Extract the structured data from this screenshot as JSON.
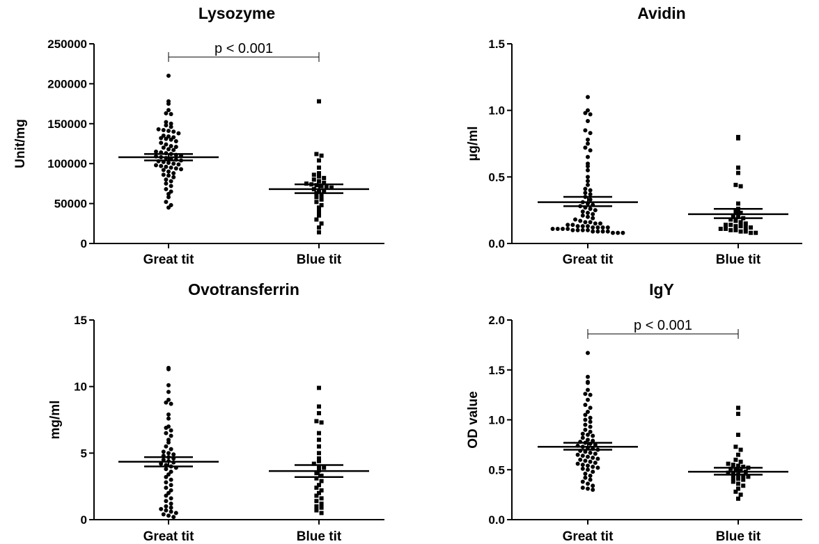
{
  "chart_data": [
    {
      "type": "scatter",
      "title": "Lysozyme",
      "ylabel": "Unit/mg",
      "ylim": [
        0,
        250000
      ],
      "yticks": [
        0,
        50000,
        100000,
        150000,
        200000,
        250000
      ],
      "ytick_labels": [
        "0",
        "50000",
        "100000",
        "150000",
        "200000",
        "250000"
      ],
      "categories": [
        "Great tit",
        "Blue tit"
      ],
      "significance": {
        "label": "p < 0.001",
        "between": [
          "Great tit",
          "Blue tit"
        ]
      },
      "series": [
        {
          "marker": "circle",
          "mean": 108000,
          "sem_low": 104000,
          "sem_high": 112000,
          "values": [
            210000,
            178000,
            175000,
            167000,
            163000,
            162000,
            152000,
            150000,
            148000,
            146000,
            143000,
            142000,
            141000,
            140000,
            138000,
            135000,
            134000,
            133000,
            132000,
            131000,
            130000,
            128000,
            126000,
            124000,
            122000,
            121000,
            120000,
            118000,
            117000,
            115000,
            114000,
            113000,
            112000,
            111000,
            110000,
            109000,
            108000,
            107000,
            106000,
            105000,
            104000,
            103000,
            102000,
            101000,
            100000,
            99000,
            98000,
            97000,
            96000,
            95000,
            94000,
            93000,
            92000,
            90000,
            88000,
            86000,
            85000,
            83000,
            80000,
            78000,
            75000,
            72000,
            68000,
            65000,
            62000,
            58000,
            52000,
            48000,
            45000
          ]
        },
        {
          "marker": "square",
          "mean": 68000,
          "sem_low": 63000,
          "sem_high": 74000,
          "values": [
            178000,
            112000,
            110000,
            104000,
            95000,
            88000,
            86000,
            84000,
            82000,
            80000,
            78000,
            76000,
            75000,
            74000,
            73000,
            72000,
            71000,
            70000,
            68000,
            66000,
            65000,
            63000,
            60000,
            58000,
            55000,
            52000,
            48000,
            45000,
            40000,
            35000,
            30000,
            25000,
            20000,
            14000
          ]
        }
      ]
    },
    {
      "type": "scatter",
      "title": "Avidin",
      "ylabel": "µg/ml",
      "ylim": [
        0,
        1.5
      ],
      "yticks": [
        0,
        0.5,
        1.0,
        1.5
      ],
      "ytick_labels": [
        "0.0",
        "0.5",
        "1.0",
        "1.5"
      ],
      "categories": [
        "Great tit",
        "Blue tit"
      ],
      "series": [
        {
          "marker": "circle",
          "mean": 0.31,
          "sem_low": 0.28,
          "sem_high": 0.35,
          "values": [
            1.1,
            1.0,
            0.98,
            0.97,
            0.92,
            0.85,
            0.83,
            0.78,
            0.75,
            0.72,
            0.7,
            0.65,
            0.6,
            0.58,
            0.55,
            0.5,
            0.47,
            0.44,
            0.41,
            0.4,
            0.38,
            0.37,
            0.35,
            0.33,
            0.31,
            0.3,
            0.29,
            0.28,
            0.27,
            0.26,
            0.25,
            0.24,
            0.23,
            0.22,
            0.21,
            0.2,
            0.19,
            0.18,
            0.17,
            0.16,
            0.16,
            0.15,
            0.15,
            0.14,
            0.14,
            0.13,
            0.13,
            0.13,
            0.12,
            0.12,
            0.12,
            0.12,
            0.11,
            0.11,
            0.11,
            0.11,
            0.1,
            0.1,
            0.1,
            0.1,
            0.09,
            0.09,
            0.09,
            0.09,
            0.08,
            0.08,
            0.08
          ]
        },
        {
          "marker": "square",
          "mean": 0.22,
          "sem_low": 0.19,
          "sem_high": 0.26,
          "values": [
            0.8,
            0.79,
            0.57,
            0.53,
            0.44,
            0.43,
            0.3,
            0.26,
            0.24,
            0.23,
            0.21,
            0.2,
            0.19,
            0.18,
            0.17,
            0.16,
            0.15,
            0.14,
            0.14,
            0.13,
            0.13,
            0.12,
            0.12,
            0.11,
            0.11,
            0.1,
            0.1,
            0.09,
            0.09,
            0.08,
            0.08
          ]
        }
      ]
    },
    {
      "type": "scatter",
      "title": "Ovotransferrin",
      "ylabel": "mg/ml",
      "ylim": [
        0,
        15
      ],
      "yticks": [
        0,
        5,
        10,
        15
      ],
      "ytick_labels": [
        "0",
        "5",
        "10",
        "15"
      ],
      "categories": [
        "Great tit",
        "Blue tit"
      ],
      "series": [
        {
          "marker": "circle",
          "mean": 4.35,
          "sem_low": 4.0,
          "sem_high": 4.7,
          "values": [
            11.4,
            11.3,
            10.1,
            9.6,
            9.0,
            8.8,
            8.7,
            7.9,
            7.6,
            7.0,
            6.9,
            6.7,
            6.5,
            6.3,
            6.0,
            5.8,
            5.5,
            5.3,
            5.1,
            5.0,
            4.9,
            4.8,
            4.7,
            4.6,
            4.5,
            4.4,
            4.3,
            4.2,
            4.1,
            4.0,
            3.9,
            3.8,
            3.6,
            3.4,
            3.2,
            3.0,
            2.8,
            2.6,
            2.4,
            2.2,
            2.0,
            1.8,
            1.6,
            1.4,
            1.2,
            1.0,
            0.9,
            0.8,
            0.7,
            0.6,
            0.5,
            0.4,
            0.3,
            0.2
          ]
        },
        {
          "marker": "square",
          "mean": 3.65,
          "sem_low": 3.2,
          "sem_high": 4.1,
          "values": [
            9.9,
            8.5,
            8.0,
            7.4,
            7.3,
            6.5,
            6.0,
            5.5,
            5.0,
            4.6,
            4.4,
            4.2,
            4.0,
            3.9,
            3.7,
            3.5,
            3.3,
            3.1,
            2.9,
            2.6,
            2.4,
            2.2,
            2.0,
            1.8,
            1.6,
            1.4,
            1.2,
            1.0,
            0.9,
            0.7,
            0.5
          ]
        }
      ]
    },
    {
      "type": "scatter",
      "title": "IgY",
      "ylabel": "OD value",
      "ylim": [
        0,
        2.0
      ],
      "yticks": [
        0,
        0.5,
        1.0,
        1.5,
        2.0
      ],
      "ytick_labels": [
        "0.0",
        "0.5",
        "1.0",
        "1.5",
        "2.0"
      ],
      "categories": [
        "Great tit",
        "Blue tit"
      ],
      "significance": {
        "label": "p < 0.001",
        "between": [
          "Great tit",
          "Blue tit"
        ]
      },
      "series": [
        {
          "marker": "circle",
          "mean": 0.73,
          "sem_low": 0.7,
          "sem_high": 0.77,
          "values": [
            1.67,
            1.43,
            1.38,
            1.37,
            1.3,
            1.26,
            1.25,
            1.2,
            1.15,
            1.12,
            1.08,
            1.05,
            1.02,
            1.0,
            0.98,
            0.95,
            0.93,
            0.9,
            0.88,
            0.86,
            0.85,
            0.84,
            0.82,
            0.8,
            0.79,
            0.78,
            0.77,
            0.76,
            0.75,
            0.74,
            0.73,
            0.72,
            0.71,
            0.7,
            0.69,
            0.68,
            0.67,
            0.66,
            0.65,
            0.64,
            0.63,
            0.62,
            0.61,
            0.6,
            0.59,
            0.58,
            0.57,
            0.56,
            0.55,
            0.54,
            0.53,
            0.52,
            0.51,
            0.5,
            0.48,
            0.46,
            0.44,
            0.42,
            0.4,
            0.38,
            0.36,
            0.34,
            0.32,
            0.31,
            0.3
          ]
        },
        {
          "marker": "square",
          "mean": 0.48,
          "sem_low": 0.45,
          "sem_high": 0.52,
          "values": [
            1.12,
            1.06,
            0.85,
            0.73,
            0.7,
            0.65,
            0.6,
            0.58,
            0.56,
            0.55,
            0.54,
            0.53,
            0.52,
            0.51,
            0.5,
            0.49,
            0.48,
            0.47,
            0.46,
            0.45,
            0.44,
            0.43,
            0.42,
            0.41,
            0.4,
            0.38,
            0.36,
            0.34,
            0.31,
            0.28,
            0.25,
            0.21
          ]
        }
      ]
    }
  ]
}
